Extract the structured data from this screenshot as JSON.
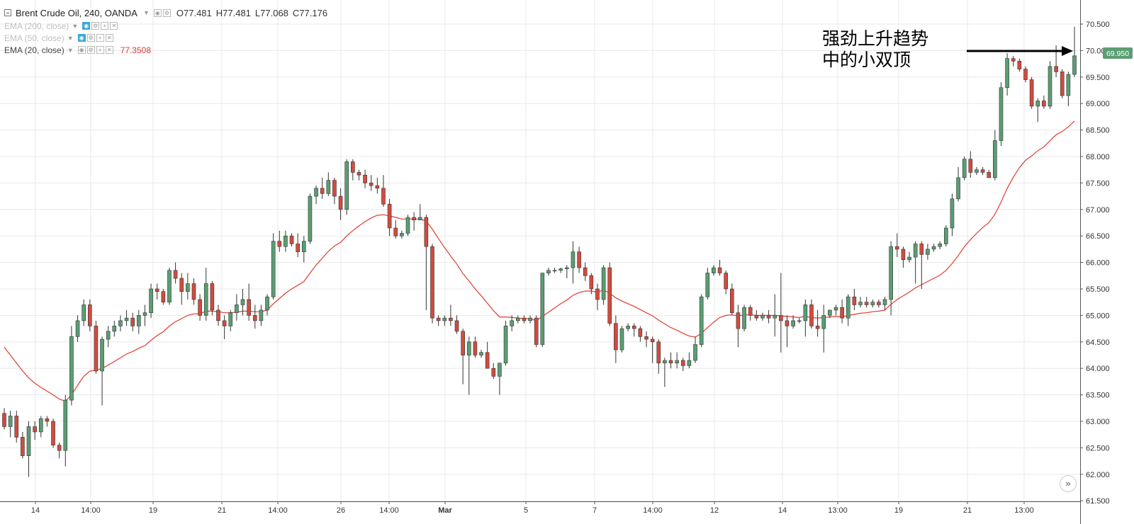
{
  "header": {
    "symbol": "Brent Crude Oil, 240, OANDA",
    "open": "O77.481",
    "high": "H77.481",
    "low": "L77.068",
    "close": "C77.176"
  },
  "indicators": [
    {
      "label": "EMA (200, close)",
      "value": "",
      "active": true
    },
    {
      "label": "EMA (50, close)",
      "value": "",
      "active": true
    },
    {
      "label": "EMA (20, close)",
      "value": "77.3508",
      "active": false
    }
  ],
  "annotation": {
    "line1": "强劲上升趋势",
    "line2": "中的小双顶"
  },
  "price_badge": "69.950",
  "scroll_icon": "double-chevron-right-icon",
  "colors": {
    "up": "#5a9e73",
    "down": "#d24b3e",
    "ema": "#e03c31",
    "grid": "#e8e8e8",
    "badge": "#5a9e73"
  },
  "chart_data": {
    "type": "candlestick",
    "title": "Brent Crude Oil, 240, OANDA",
    "ylim": [
      61.5,
      70.5
    ],
    "y_ticks": [
      "70.500",
      "70.000",
      "69.500",
      "69.000",
      "68.500",
      "68.000",
      "67.500",
      "67.000",
      "66.500",
      "66.000",
      "65.500",
      "65.000",
      "64.500",
      "64.000",
      "63.500",
      "63.000",
      "62.500",
      "62.000",
      "61.500"
    ],
    "x_ticks": [
      "14",
      "14:00",
      "19",
      "21",
      "14:00",
      "26",
      "14:00",
      "Mar",
      "5",
      "7",
      "14:00",
      "12",
      "14",
      "13:00",
      "19",
      "21",
      "13:00"
    ],
    "candles": [
      [
        63.15,
        63.25,
        62.85,
        62.9
      ],
      [
        62.9,
        63.2,
        62.7,
        63.1
      ],
      [
        63.1,
        63.2,
        62.6,
        62.7
      ],
      [
        62.7,
        62.8,
        62.3,
        62.35
      ],
      [
        62.35,
        63.0,
        61.95,
        62.9
      ],
      [
        62.9,
        63.0,
        62.65,
        62.8
      ],
      [
        62.8,
        63.1,
        62.7,
        63.05
      ],
      [
        63.05,
        63.1,
        62.9,
        63.0
      ],
      [
        63.0,
        63.05,
        62.5,
        62.55
      ],
      [
        62.55,
        62.6,
        62.3,
        62.45
      ],
      [
        62.45,
        63.5,
        62.15,
        63.4
      ],
      [
        63.4,
        64.8,
        63.3,
        64.6
      ],
      [
        64.6,
        65.0,
        64.5,
        64.9
      ],
      [
        64.9,
        65.3,
        64.8,
        65.2
      ],
      [
        65.2,
        65.3,
        64.7,
        64.8
      ],
      [
        64.8,
        64.9,
        63.9,
        63.95
      ],
      [
        63.95,
        64.6,
        63.3,
        64.55
      ],
      [
        64.55,
        64.8,
        64.4,
        64.7
      ],
      [
        64.7,
        64.9,
        64.6,
        64.8
      ],
      [
        64.8,
        65.0,
        64.7,
        64.9
      ],
      [
        64.9,
        65.1,
        64.8,
        64.95
      ],
      [
        64.95,
        65.05,
        64.7,
        64.8
      ],
      [
        64.8,
        65.1,
        64.65,
        65.0
      ],
      [
        65.0,
        65.2,
        64.8,
        65.05
      ],
      [
        65.05,
        65.6,
        64.95,
        65.5
      ],
      [
        65.5,
        65.6,
        65.3,
        65.45
      ],
      [
        65.45,
        65.5,
        65.2,
        65.25
      ],
      [
        65.25,
        65.9,
        65.2,
        65.85
      ],
      [
        65.85,
        66.0,
        65.6,
        65.7
      ],
      [
        65.7,
        65.8,
        65.2,
        65.45
      ],
      [
        65.45,
        65.8,
        65.3,
        65.6
      ],
      [
        65.6,
        65.7,
        65.2,
        65.3
      ],
      [
        65.3,
        65.4,
        64.9,
        65.0
      ],
      [
        65.0,
        65.9,
        64.9,
        65.6
      ],
      [
        65.6,
        65.65,
        65.0,
        65.1
      ],
      [
        65.1,
        65.2,
        64.8,
        64.9
      ],
      [
        64.9,
        65.0,
        64.55,
        64.8
      ],
      [
        64.8,
        65.1,
        64.7,
        65.05
      ],
      [
        65.05,
        65.4,
        64.9,
        65.2
      ],
      [
        65.2,
        65.5,
        65.0,
        65.3
      ],
      [
        65.3,
        65.6,
        64.9,
        65.0
      ],
      [
        65.0,
        65.2,
        64.75,
        64.9
      ],
      [
        64.9,
        65.2,
        64.8,
        65.1
      ],
      [
        65.1,
        65.4,
        65.0,
        65.35
      ],
      [
        65.35,
        66.55,
        65.3,
        66.4
      ],
      [
        66.4,
        66.6,
        66.2,
        66.3
      ],
      [
        66.3,
        66.6,
        66.2,
        66.5
      ],
      [
        66.5,
        66.55,
        66.3,
        66.35
      ],
      [
        66.35,
        66.55,
        66.1,
        66.2
      ],
      [
        66.2,
        66.5,
        66.0,
        66.4
      ],
      [
        66.4,
        67.3,
        66.35,
        67.25
      ],
      [
        67.25,
        67.45,
        67.1,
        67.4
      ],
      [
        67.4,
        67.6,
        67.2,
        67.3
      ],
      [
        67.3,
        67.7,
        67.25,
        67.55
      ],
      [
        67.55,
        67.6,
        67.1,
        67.25
      ],
      [
        67.25,
        67.4,
        66.8,
        67.0
      ],
      [
        67.0,
        67.95,
        66.9,
        67.9
      ],
      [
        67.9,
        67.95,
        67.55,
        67.7
      ],
      [
        67.7,
        67.75,
        67.55,
        67.65
      ],
      [
        67.65,
        67.75,
        67.4,
        67.5
      ],
      [
        67.5,
        67.65,
        67.35,
        67.45
      ],
      [
        67.45,
        67.6,
        67.3,
        67.4
      ],
      [
        67.4,
        67.65,
        67.05,
        67.1
      ],
      [
        67.1,
        67.2,
        66.5,
        66.65
      ],
      [
        66.65,
        66.8,
        66.45,
        66.5
      ],
      [
        66.5,
        66.6,
        66.45,
        66.55
      ],
      [
        66.55,
        66.9,
        66.5,
        66.85
      ],
      [
        66.85,
        66.95,
        66.6,
        66.8
      ],
      [
        66.8,
        67.1,
        66.8,
        66.85
      ],
      [
        66.85,
        66.9,
        65.1,
        66.3
      ],
      [
        66.3,
        66.35,
        64.85,
        64.95
      ],
      [
        64.95,
        65.0,
        64.8,
        64.9
      ],
      [
        64.9,
        65.0,
        64.8,
        64.95
      ],
      [
        64.95,
        65.2,
        64.8,
        64.9
      ],
      [
        64.9,
        65.0,
        64.65,
        64.7
      ],
      [
        64.7,
        64.75,
        63.7,
        64.25
      ],
      [
        64.25,
        64.6,
        63.5,
        64.5
      ],
      [
        64.5,
        64.6,
        64.2,
        64.25
      ],
      [
        64.25,
        64.35,
        64.2,
        64.3
      ],
      [
        64.3,
        64.5,
        64.0,
        64.0
      ],
      [
        64.0,
        64.1,
        63.8,
        63.85
      ],
      [
        63.85,
        64.1,
        63.5,
        64.1
      ],
      [
        64.1,
        64.9,
        64.05,
        64.8
      ],
      [
        64.8,
        65.0,
        64.7,
        64.9
      ],
      [
        64.9,
        65.0,
        64.85,
        64.95
      ],
      [
        64.95,
        65.0,
        64.85,
        64.9
      ],
      [
        64.9,
        65.0,
        64.85,
        64.95
      ],
      [
        64.95,
        65.0,
        64.4,
        64.45
      ],
      [
        64.45,
        65.8,
        64.4,
        65.8
      ],
      [
        65.8,
        65.9,
        65.75,
        65.85
      ],
      [
        65.85,
        65.9,
        65.8,
        65.85
      ],
      [
        65.85,
        65.9,
        65.8,
        65.88
      ],
      [
        65.88,
        65.95,
        65.7,
        65.9
      ],
      [
        65.9,
        66.4,
        65.6,
        66.2
      ],
      [
        66.2,
        66.3,
        65.8,
        65.9
      ],
      [
        65.9,
        66.0,
        65.65,
        65.75
      ],
      [
        65.75,
        65.8,
        65.4,
        65.5
      ],
      [
        65.5,
        65.6,
        65.1,
        65.3
      ],
      [
        65.3,
        65.95,
        65.2,
        65.9
      ],
      [
        65.9,
        66.0,
        64.8,
        64.85
      ],
      [
        64.85,
        65.0,
        64.1,
        64.35
      ],
      [
        64.35,
        64.8,
        64.3,
        64.75
      ],
      [
        64.75,
        64.85,
        64.7,
        64.8
      ],
      [
        64.8,
        64.85,
        64.6,
        64.75
      ],
      [
        64.75,
        64.8,
        64.5,
        64.6
      ],
      [
        64.6,
        64.7,
        64.4,
        64.55
      ],
      [
        64.55,
        64.6,
        64.1,
        64.5
      ],
      [
        64.5,
        64.55,
        63.9,
        64.1
      ],
      [
        64.1,
        64.2,
        63.65,
        64.15
      ],
      [
        64.15,
        64.3,
        64.0,
        64.1
      ],
      [
        64.1,
        64.3,
        64.0,
        64.15
      ],
      [
        64.15,
        64.2,
        63.95,
        64.05
      ],
      [
        64.05,
        64.3,
        64.0,
        64.15
      ],
      [
        64.15,
        64.6,
        64.1,
        64.45
      ],
      [
        64.45,
        65.4,
        64.4,
        65.35
      ],
      [
        65.35,
        65.9,
        65.3,
        65.8
      ],
      [
        65.8,
        65.95,
        65.75,
        65.9
      ],
      [
        65.9,
        66.05,
        65.75,
        65.8
      ],
      [
        65.8,
        65.85,
        65.4,
        65.5
      ],
      [
        65.5,
        65.6,
        65.0,
        65.05
      ],
      [
        65.05,
        65.2,
        64.4,
        64.75
      ],
      [
        64.75,
        65.2,
        64.7,
        65.15
      ],
      [
        65.15,
        65.2,
        64.9,
        65.0
      ],
      [
        65.0,
        65.1,
        64.9,
        64.95
      ],
      [
        64.95,
        65.05,
        64.9,
        65.0
      ],
      [
        65.0,
        65.1,
        64.85,
        64.95
      ],
      [
        64.95,
        65.4,
        64.6,
        65.0
      ],
      [
        65.0,
        65.8,
        64.3,
        64.9
      ],
      [
        64.9,
        65.0,
        64.4,
        64.8
      ],
      [
        64.8,
        65.0,
        64.75,
        64.9
      ],
      [
        64.9,
        64.95,
        64.85,
        64.9
      ],
      [
        64.9,
        65.3,
        64.6,
        65.2
      ],
      [
        65.2,
        65.3,
        64.75,
        64.8
      ],
      [
        64.8,
        65.1,
        64.6,
        64.75
      ],
      [
        64.75,
        65.2,
        64.3,
        65.0
      ],
      [
        65.0,
        65.1,
        64.95,
        65.1
      ],
      [
        65.1,
        65.2,
        65.0,
        65.15
      ],
      [
        65.15,
        65.3,
        64.85,
        64.95
      ],
      [
        64.95,
        65.4,
        64.8,
        65.35
      ],
      [
        65.35,
        65.5,
        65.1,
        65.2
      ],
      [
        65.2,
        65.35,
        65.15,
        65.25
      ],
      [
        65.25,
        65.35,
        65.15,
        65.2
      ],
      [
        65.2,
        65.3,
        65.15,
        65.25
      ],
      [
        65.25,
        65.3,
        65.15,
        65.2
      ],
      [
        65.2,
        65.35,
        65.1,
        65.3
      ],
      [
        65.3,
        66.4,
        65.0,
        66.3
      ],
      [
        66.3,
        66.55,
        66.1,
        66.25
      ],
      [
        66.25,
        66.3,
        65.9,
        66.05
      ],
      [
        66.05,
        66.2,
        66.0,
        66.1
      ],
      [
        66.1,
        66.4,
        65.6,
        66.35
      ],
      [
        66.35,
        66.4,
        65.5,
        66.15
      ],
      [
        66.15,
        66.35,
        66.05,
        66.25
      ],
      [
        66.25,
        66.35,
        66.2,
        66.3
      ],
      [
        66.3,
        66.4,
        66.25,
        66.35
      ],
      [
        66.35,
        66.7,
        66.3,
        66.65
      ],
      [
        66.65,
        67.3,
        66.5,
        67.2
      ],
      [
        67.2,
        67.8,
        67.15,
        67.6
      ],
      [
        67.6,
        68.0,
        67.55,
        67.95
      ],
      [
        67.95,
        68.1,
        67.6,
        67.7
      ],
      [
        67.7,
        67.8,
        67.65,
        67.75
      ],
      [
        67.75,
        67.8,
        67.65,
        67.7
      ],
      [
        67.7,
        67.75,
        67.6,
        67.6
      ],
      [
        67.6,
        68.5,
        67.55,
        68.3
      ],
      [
        68.3,
        69.4,
        68.2,
        69.3
      ],
      [
        69.3,
        69.95,
        69.15,
        69.85
      ],
      [
        69.85,
        69.9,
        69.7,
        69.8
      ],
      [
        69.8,
        69.85,
        69.6,
        69.65
      ],
      [
        69.65,
        69.7,
        69.4,
        69.45
      ],
      [
        69.45,
        69.5,
        68.9,
        68.95
      ],
      [
        68.95,
        69.1,
        68.65,
        69.05
      ],
      [
        69.05,
        69.15,
        68.9,
        68.95
      ],
      [
        68.95,
        69.8,
        68.9,
        69.7
      ],
      [
        69.7,
        70.1,
        69.5,
        69.6
      ],
      [
        69.6,
        69.65,
        69.1,
        69.15
      ],
      [
        69.15,
        69.6,
        68.95,
        69.55
      ],
      [
        69.55,
        70.45,
        69.5,
        69.9
      ]
    ],
    "ema_20": [
      64.4,
      64.25,
      64.1,
      63.95,
      63.82,
      63.72,
      63.64,
      63.57,
      63.5,
      63.42,
      63.38,
      63.5,
      63.68,
      63.85,
      63.95,
      63.96,
      64.0,
      64.06,
      64.13,
      64.2,
      64.27,
      64.32,
      64.38,
      64.43,
      64.53,
      64.62,
      64.69,
      64.8,
      64.88,
      64.94,
      65.0,
      65.03,
      65.03,
      65.08,
      65.08,
      65.07,
      65.05,
      65.05,
      65.06,
      65.08,
      65.08,
      65.07,
      65.07,
      65.1,
      65.22,
      65.32,
      65.42,
      65.5,
      65.57,
      65.64,
      65.8,
      65.95,
      66.08,
      66.21,
      66.31,
      66.38,
      66.5,
      66.6,
      66.69,
      66.77,
      66.84,
      66.89,
      66.9,
      66.88,
      66.85,
      66.82,
      66.82,
      66.82,
      66.82,
      66.78,
      66.63,
      66.45,
      66.28,
      66.12,
      65.97,
      65.79,
      65.65,
      65.5,
      65.37,
      65.23,
      65.09,
      64.97,
      64.97,
      64.96,
      64.95,
      64.94,
      64.94,
      64.9,
      64.98,
      65.06,
      65.14,
      65.22,
      65.29,
      65.38,
      65.43,
      65.46,
      65.46,
      65.44,
      65.48,
      65.42,
      65.33,
      65.27,
      65.22,
      65.17,
      65.11,
      65.05,
      64.99,
      64.91,
      64.84,
      64.77,
      64.72,
      64.66,
      64.61,
      64.59,
      64.66,
      64.77,
      64.87,
      64.96,
      65.0,
      65.01,
      64.99,
      65.01,
      65.01,
      65.0,
      65.0,
      65.0,
      65.0,
      64.99,
      64.98,
      64.97,
      64.96,
      64.98,
      64.96,
      64.95,
      64.96,
      64.97,
      64.98,
      64.97,
      65.0,
      65.02,
      65.04,
      65.05,
      65.07,
      65.08,
      65.1,
      65.21,
      65.3,
      65.37,
      65.44,
      65.52,
      65.58,
      65.64,
      65.7,
      65.76,
      65.85,
      65.98,
      66.13,
      66.3,
      66.43,
      66.55,
      66.66,
      66.75,
      66.91,
      67.14,
      67.4,
      67.61,
      67.79,
      67.93,
      68.01,
      68.11,
      68.18,
      68.3,
      68.41,
      68.47,
      68.56,
      68.67
    ]
  }
}
